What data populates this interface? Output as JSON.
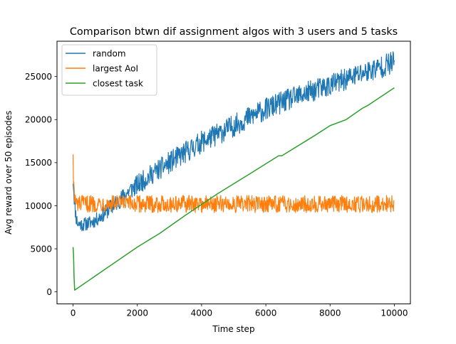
{
  "chart_data": {
    "type": "line",
    "title": "Comparison btwn dif assignment algos with 3 users and 5 tasks",
    "xlabel": "Time step",
    "ylabel": "Avg reward over 50 episodes",
    "xlim": [
      -500,
      10500
    ],
    "ylim": [
      -1400,
      29100
    ],
    "xticks": [
      0,
      2000,
      4000,
      6000,
      8000,
      10000
    ],
    "xtick_labels": [
      "0",
      "2000",
      "4000",
      "6000",
      "8000",
      "10000"
    ],
    "yticks": [
      0,
      5000,
      10000,
      15000,
      20000,
      25000
    ],
    "ytick_labels": [
      "0",
      "5000",
      "10000",
      "15000",
      "20000",
      "25000"
    ],
    "grid": false,
    "legend_position": "upper left",
    "series": [
      {
        "name": "random",
        "color": "#1f77b4",
        "style": "noisy band",
        "x": [
          0,
          30,
          60,
          100,
          150,
          300,
          500,
          700,
          1000,
          1200,
          1500,
          1700,
          2000,
          2500,
          3000,
          3500,
          4000,
          4500,
          5000,
          5500,
          6000,
          6500,
          7000,
          7500,
          8000,
          8500,
          9000,
          9500,
          10000
        ],
        "y": [
          13500,
          11500,
          9800,
          8500,
          7900,
          7800,
          8000,
          8300,
          9200,
          9900,
          10800,
          11600,
          12400,
          13800,
          15000,
          16200,
          17400,
          18300,
          19300,
          20300,
          21200,
          22000,
          22700,
          23400,
          24000,
          24700,
          25400,
          26000,
          26700
        ],
        "amplitude": [
          1800,
          1200,
          900,
          900,
          800,
          800,
          800,
          800,
          900,
          1000,
          1000,
          1100,
          1200,
          1200,
          1300,
          1300,
          1300,
          1300,
          1300,
          1300,
          1300,
          1300,
          1300,
          1300,
          1300,
          1300,
          1300,
          1300,
          1400
        ]
      },
      {
        "name": "largest AoI",
        "color": "#ff7f0e",
        "style": "noisy band",
        "x": [
          0,
          10,
          25,
          50,
          80,
          150,
          300,
          1000,
          2000,
          3000,
          4000,
          5000,
          6000,
          7000,
          8000,
          9000,
          10000
        ],
        "y": [
          16500,
          14000,
          12000,
          10800,
          10300,
          10200,
          10200,
          10300,
          10200,
          10200,
          10200,
          10200,
          10200,
          10200,
          10200,
          10200,
          10200
        ],
        "amplitude": [
          1200,
          1300,
          1200,
          1100,
          1000,
          1000,
          1000,
          1000,
          1000,
          1000,
          1000,
          1000,
          1000,
          1000,
          1000,
          1000,
          1000
        ]
      },
      {
        "name": "closest task",
        "color": "#2ca02c",
        "style": "line",
        "x": [
          0,
          15,
          30,
          50,
          2000,
          2700,
          3500,
          4500,
          5500,
          6400,
          6500,
          7500,
          8000,
          8500,
          9000,
          9200,
          10000
        ],
        "y": [
          5200,
          4300,
          1800,
          200,
          5200,
          6800,
          8900,
          11400,
          13700,
          15800,
          15800,
          18100,
          19300,
          20000,
          21300,
          21700,
          23700
        ]
      }
    ]
  }
}
